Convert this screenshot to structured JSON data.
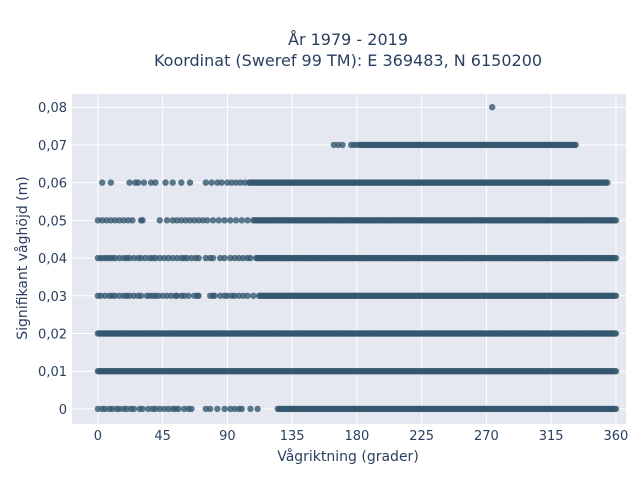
{
  "chart_data": {
    "type": "scatter",
    "title_line1": "År 1979 - 2019",
    "title_line2": "Koordinat (Sweref 99 TM): E 369483, N 6150200",
    "xlabel": "Vågriktning (grader)",
    "ylabel": "Signifikant våghöjd (m)",
    "xlim": [
      -18,
      367
    ],
    "ylim": [
      -0.004,
      0.0835
    ],
    "x_ticks": [
      0,
      45,
      90,
      135,
      180,
      225,
      270,
      315,
      360
    ],
    "x_tick_labels": [
      "0",
      "45",
      "90",
      "135",
      "180",
      "225",
      "270",
      "315",
      "360"
    ],
    "y_ticks": [
      0,
      0.01,
      0.02,
      0.03,
      0.04,
      0.05,
      0.06,
      0.07,
      0.08
    ],
    "y_tick_labels": [
      "0",
      "0,01",
      "0,02",
      "0,03",
      "0,04",
      "0,05",
      "0,06",
      "0,07",
      "0,08"
    ],
    "grid": true,
    "colors": {
      "marker": "#34586f",
      "plot_bg": "#e5e8f0",
      "grid": "#ffffff",
      "text": "#2a3f5f"
    },
    "series": [
      {
        "bands": [
          {
            "y": 0.0,
            "x_start": 0,
            "x_end": 360,
            "sparse_x": [
              0,
              3,
              5,
              8,
              10,
              13,
              15,
              18,
              20,
              23,
              25,
              29,
              31,
              35,
              38,
              40,
              43,
              46,
              49,
              52,
              54,
              56,
              60,
              63,
              65,
              75,
              78,
              83,
              88,
              92,
              95,
              98,
              100,
              106,
              111
            ],
            "dense_from": 125
          },
          {
            "y": 0.01,
            "x_start": 0,
            "x_end": 360,
            "sparse_x": [],
            "dense_from": 0
          },
          {
            "y": 0.02,
            "x_start": 0,
            "x_end": 360,
            "sparse_x": [],
            "dense_from": 0
          },
          {
            "y": 0.03,
            "x_start": 0,
            "x_end": 360,
            "sparse_x": [
              0,
              2,
              5,
              8,
              10,
              12,
              15,
              18,
              20,
              22,
              25,
              28,
              30,
              34,
              36,
              38,
              40,
              42,
              45,
              48,
              51,
              54,
              55,
              58,
              60,
              63,
              67,
              69,
              70,
              78,
              80,
              81,
              85,
              88,
              90,
              93,
              95,
              98,
              101,
              104,
              108
            ],
            "dense_from": 112
          },
          {
            "y": 0.04,
            "x_start": 0,
            "x_end": 360,
            "sparse_x": [
              0,
              2,
              4,
              6,
              8,
              10,
              12,
              15,
              18,
              20,
              22,
              25,
              28,
              30,
              33,
              36,
              38,
              40,
              43,
              46,
              49,
              52,
              55,
              58,
              60,
              62,
              65,
              68,
              70,
              75,
              78,
              80,
              85,
              88,
              92,
              95,
              98,
              101,
              104,
              106
            ],
            "dense_from": 110
          },
          {
            "y": 0.05,
            "x_start": 0,
            "x_end": 360,
            "sparse_x": [
              0,
              3,
              6,
              9,
              12,
              15,
              18,
              21,
              24,
              30,
              31,
              43,
              48,
              52,
              55,
              58,
              61,
              64,
              67,
              70,
              73,
              76,
              80,
              84,
              88,
              92,
              96,
              100,
              104
            ],
            "dense_from": 108
          },
          {
            "y": 0.06,
            "x_start": 3,
            "x_end": 354,
            "sparse_x": [
              3,
              9,
              22,
              26,
              28,
              32,
              37,
              40,
              47,
              52,
              58,
              64,
              75,
              79,
              83,
              86,
              90,
              93,
              96,
              99,
              102
            ],
            "dense_from": 105
          },
          {
            "y": 0.07,
            "x_start": 164,
            "x_end": 332,
            "sparse_x": [
              164,
              167,
              170,
              176,
              178,
              180
            ],
            "dense_from": 182
          }
        ],
        "outliers": [
          {
            "x": 274,
            "y": 0.08
          }
        ]
      }
    ]
  }
}
